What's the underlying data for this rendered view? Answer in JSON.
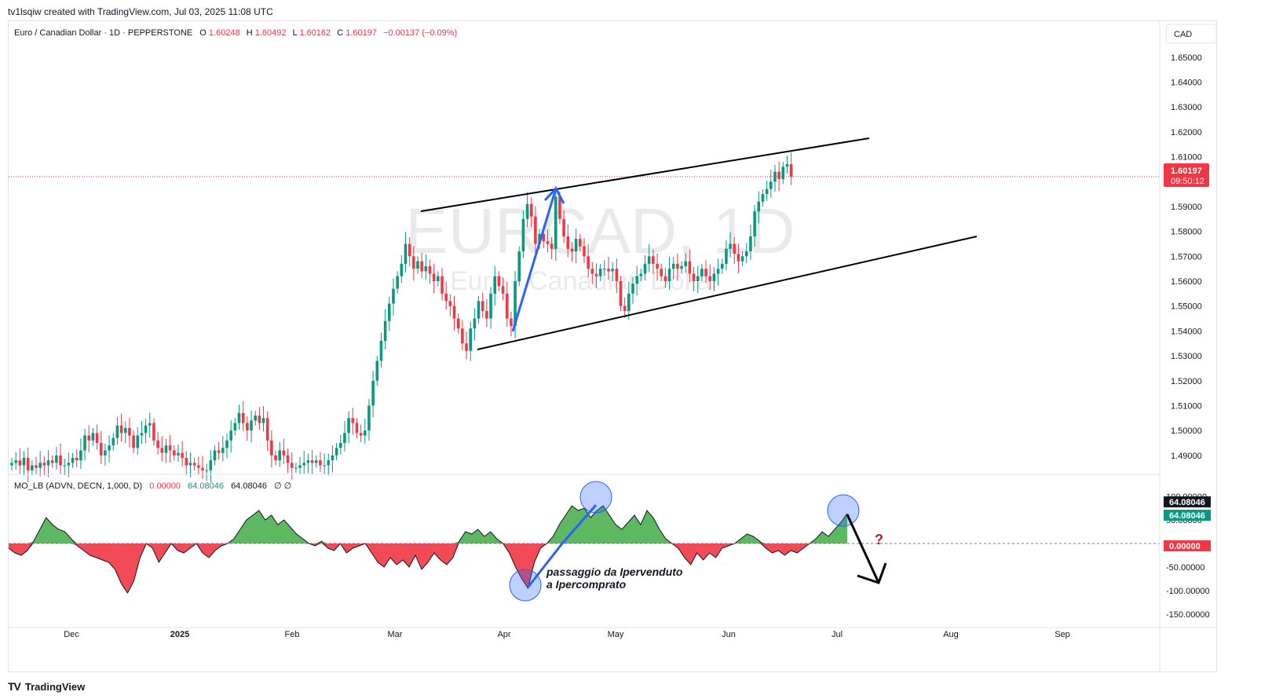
{
  "header": {
    "created_by": "tv1lsqiw created with TradingView.com, Jul 03, 2025 11:08 UTC"
  },
  "symbol": {
    "name": "Euro / Canadian Dollar · 1D · PEPPERSTONE",
    "o_label": "O",
    "o_value": "1.60248",
    "h_label": "H",
    "h_value": "1.60492",
    "l_label": "L",
    "l_value": "1.60162",
    "c_label": "C",
    "c_value": "1.60197",
    "change": "−0.00137 (−0.09%)"
  },
  "watermark": {
    "ticker": "EURCAD, 1D",
    "description": "Euro / Canadian Dollar"
  },
  "currency": "CAD",
  "price_tag": {
    "price": "1.60197",
    "countdown": "09:50:12"
  },
  "indicator": {
    "title": "MO_LB (ADVN, DECN, 1,000, D)",
    "v1": "0.00000",
    "v2": "64.08046",
    "v3": "64.08046",
    "v4": "∅ ∅",
    "tag1": "64.08046",
    "tag2": "64.08046",
    "tag_zero": "0.00000"
  },
  "annotations": {
    "line1": "passaggio da Ipervenduto",
    "line2": "a Ipercomprato",
    "question": "?"
  },
  "footer": {
    "brand": "TradingView",
    "logo": "TV"
  },
  "colors": {
    "up": "#089981",
    "down": "#f23645",
    "area_up": "#4caf50",
    "area_down": "#f23645",
    "arrow": "#2962ff"
  },
  "chart_data": [
    {
      "type": "candlestick",
      "title": "Euro / Canadian Dollar · 1D · PEPPERSTONE",
      "yunit": "CAD",
      "ylim": [
        1.483,
        1.655
      ],
      "ytick_labels": [
        "1.65000",
        "1.64000",
        "1.63000",
        "1.62000",
        "1.61000",
        "1.60000",
        "1.59000",
        "1.58000",
        "1.57000",
        "1.56000",
        "1.55000",
        "1.54000",
        "1.53000",
        "1.52000",
        "1.51000",
        "1.50000",
        "1.49000"
      ],
      "xtick_labels": [
        "Dec",
        "2025",
        "Feb",
        "Mar",
        "Apr",
        "May",
        "Jun",
        "Jul",
        "Aug",
        "Sep"
      ],
      "series": [
        {
          "name": "EURCAD",
          "close_path": [
            1.487,
            1.488,
            1.486,
            1.489,
            1.484,
            1.486,
            1.485,
            1.487,
            1.486,
            1.488,
            1.487,
            1.49,
            1.486,
            1.486,
            1.487,
            1.489,
            1.488,
            1.492,
            1.498,
            1.496,
            1.499,
            1.495,
            1.49,
            1.492,
            1.494,
            1.497,
            1.502,
            1.499,
            1.501,
            1.498,
            1.493,
            1.498,
            1.499,
            1.502,
            1.503,
            1.496,
            1.493,
            1.491,
            1.494,
            1.492,
            1.49,
            1.491,
            1.489,
            1.486,
            1.487,
            1.486,
            1.485,
            1.484,
            1.484,
            1.488,
            1.492,
            1.491,
            1.493,
            1.496,
            1.5,
            1.503,
            1.507,
            1.503,
            1.5,
            1.504,
            1.506,
            1.503,
            1.505,
            1.496,
            1.49,
            1.488,
            1.492,
            1.49,
            1.487,
            1.485,
            1.485,
            1.486,
            1.487,
            1.488,
            1.487,
            1.488,
            1.486,
            1.486,
            1.488,
            1.49,
            1.493,
            1.495,
            1.499,
            1.505,
            1.503,
            1.499,
            1.498,
            1.5,
            1.51,
            1.52,
            1.528,
            1.536,
            1.544,
            1.551,
            1.557,
            1.562,
            1.567,
            1.575,
            1.57,
            1.565,
            1.568,
            1.564,
            1.566,
            1.563,
            1.56,
            1.562,
            1.555,
            1.552,
            1.55,
            1.545,
            1.541,
            1.535,
            1.532,
            1.541,
            1.545,
            1.552,
            1.548,
            1.545,
            1.555,
            1.562,
            1.558,
            1.555,
            1.545,
            1.542,
            1.56,
            1.572,
            1.585,
            1.591,
            1.586,
            1.575,
            1.579,
            1.576,
            1.575,
            1.573,
            1.594,
            1.585,
            1.578,
            1.573,
            1.572,
            1.577,
            1.574,
            1.57,
            1.565,
            1.563,
            1.562,
            1.565,
            1.565,
            1.564,
            1.565,
            1.56,
            1.55,
            1.548,
            1.555,
            1.559,
            1.562,
            1.563,
            1.567,
            1.57,
            1.567,
            1.565,
            1.562,
            1.56,
            1.565,
            1.567,
            1.565,
            1.566,
            1.568,
            1.563,
            1.56,
            1.562,
            1.565,
            1.562,
            1.56,
            1.563,
            1.565,
            1.567,
            1.573,
            1.575,
            1.571,
            1.568,
            1.57,
            1.572,
            1.578,
            1.588,
            1.592,
            1.595,
            1.597,
            1.6,
            1.604,
            1.601,
            1.606,
            1.607,
            1.602
          ]
        }
      ]
    },
    {
      "type": "area",
      "title": "MO_LB (ADVN, DECN, 1,000, D)",
      "ylim": [
        -175,
        125
      ],
      "ytick_labels": [
        "100.00000",
        "50.00000",
        "0.00000",
        "-50.00000",
        "-100.00000",
        "-150.00000"
      ],
      "baseline": 0,
      "series": [
        {
          "name": "MO_LB",
          "values": [
            -10,
            -20,
            -25,
            -15,
            5,
            30,
            55,
            40,
            30,
            25,
            10,
            -5,
            -15,
            -25,
            -30,
            -35,
            -40,
            -55,
            -85,
            -105,
            -80,
            -30,
            0,
            -10,
            -40,
            -20,
            0,
            -15,
            -20,
            -10,
            0,
            -20,
            -30,
            -15,
            -5,
            0,
            10,
            30,
            50,
            60,
            70,
            50,
            60,
            40,
            50,
            35,
            20,
            10,
            0,
            -5,
            5,
            -10,
            -15,
            0,
            -20,
            -10,
            -5,
            0,
            -20,
            -40,
            -50,
            -30,
            -45,
            -35,
            -50,
            -25,
            -55,
            -40,
            -20,
            -35,
            -45,
            -30,
            5,
            25,
            20,
            30,
            15,
            25,
            10,
            0,
            -20,
            -50,
            -75,
            -95,
            -40,
            -10,
            0,
            15,
            40,
            60,
            80,
            70,
            75,
            55,
            70,
            80,
            60,
            40,
            30,
            45,
            60,
            40,
            70,
            55,
            30,
            10,
            0,
            -10,
            -30,
            -45,
            -20,
            -35,
            -20,
            -30,
            -10,
            -5,
            0,
            10,
            20,
            15,
            5,
            -10,
            -20,
            -15,
            -25,
            -15,
            -20,
            -10,
            0,
            10,
            25,
            15,
            30,
            45,
            64
          ]
        }
      ]
    }
  ]
}
